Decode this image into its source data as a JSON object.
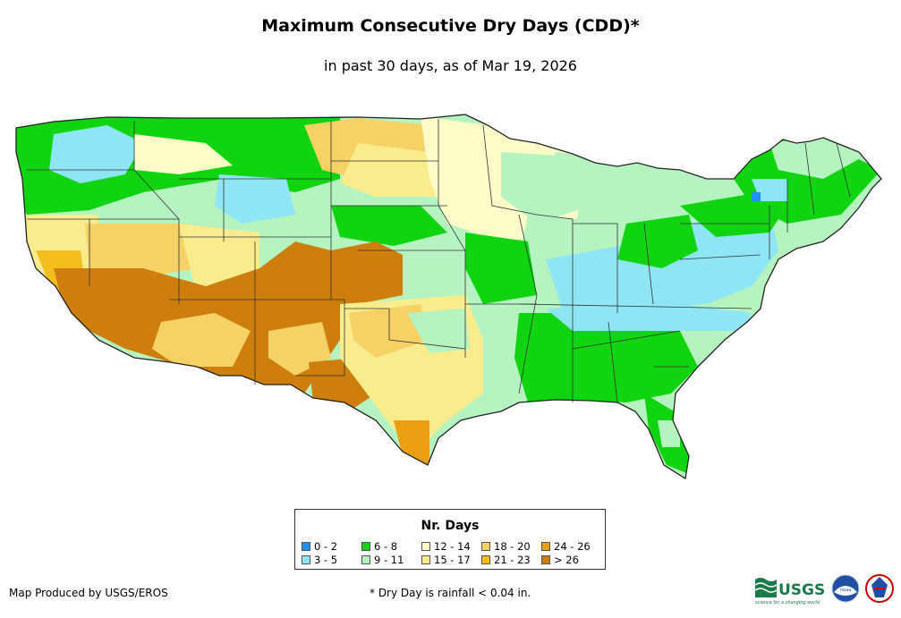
{
  "title": "Maximum Consecutive Dry Days (CDD)*",
  "subtitle": "in past 30 days, as of Mar 19, 2026",
  "legend": {
    "title": "Nr. Days",
    "items": [
      {
        "label": "0 - 2",
        "color": "#1e90ff"
      },
      {
        "label": "3 - 5",
        "color": "#8ee6f5"
      },
      {
        "label": "6 - 8",
        "color": "#0fd40f"
      },
      {
        "label": "9 - 11",
        "color": "#b5f3c0"
      },
      {
        "label": "12 - 14",
        "color": "#fdfcc9"
      },
      {
        "label": "15 - 17",
        "color": "#f8ec8d"
      },
      {
        "label": "18 - 20",
        "color": "#f6d165"
      },
      {
        "label": "21 - 23",
        "color": "#f4bd1c"
      },
      {
        "label": "24 - 26",
        "color": "#eb9f12"
      },
      {
        "label": "> 26",
        "color": "#cd7e0d"
      }
    ]
  },
  "credit": "Map Produced by USGS/EROS",
  "footnote": "* Dry Day is rainfall < 0.04 in.",
  "logos": {
    "usgs": {
      "name": "usgs-logo",
      "text": "USGS",
      "tagline": "science for a changing world"
    },
    "noaa": {
      "name": "noaa-logo",
      "text": "noaa"
    },
    "nws": {
      "name": "nws-logo"
    }
  }
}
